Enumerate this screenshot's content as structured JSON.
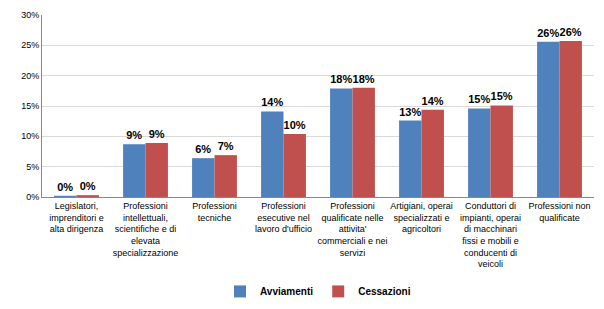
{
  "chart_data": {
    "type": "bar",
    "categories": [
      "Legislatori, imprenditori e alta dirigenza",
      "Professioni intellettuali, scientifiche e di elevata specializzazione",
      "Professioni tecniche",
      "Professioni esecutive nel lavoro d'ufficio",
      "Professioni qualificate nelle attivita' commerciali e nei servizi",
      "Artigiani, operai specializzati e agricoltori",
      "Conduttori di impianti, operai di macchinari fissi e mobili e conducenti di veicoli",
      "Professioni non qualificate"
    ],
    "series": [
      {
        "name": "Avviamenti",
        "color": "#4f81bd",
        "values": [
          0.2,
          8.7,
          6.4,
          14.1,
          17.9,
          12.6,
          14.6,
          25.6
        ],
        "value_labels": [
          "0%",
          "9%",
          "6%",
          "14%",
          "18%",
          "13%",
          "15%",
          "26%"
        ]
      },
      {
        "name": "Cessazioni",
        "color": "#c0504d",
        "values": [
          0.3,
          8.9,
          6.9,
          10.4,
          18.0,
          14.4,
          15.1,
          25.7
        ],
        "value_labels": [
          "0%",
          "9%",
          "7%",
          "10%",
          "18%",
          "14%",
          "15%",
          "26%"
        ]
      }
    ],
    "ylim": [
      0,
      30
    ],
    "yticks": [
      {
        "value": 0,
        "label": "0%"
      },
      {
        "value": 5,
        "label": "5%"
      },
      {
        "value": 10,
        "label": "10%"
      },
      {
        "value": 15,
        "label": "15%"
      },
      {
        "value": 20,
        "label": "20%"
      },
      {
        "value": 25,
        "label": "25%"
      },
      {
        "value": 30,
        "label": "30%"
      }
    ],
    "grid": true,
    "legend": "bottom",
    "data_labels": true
  }
}
